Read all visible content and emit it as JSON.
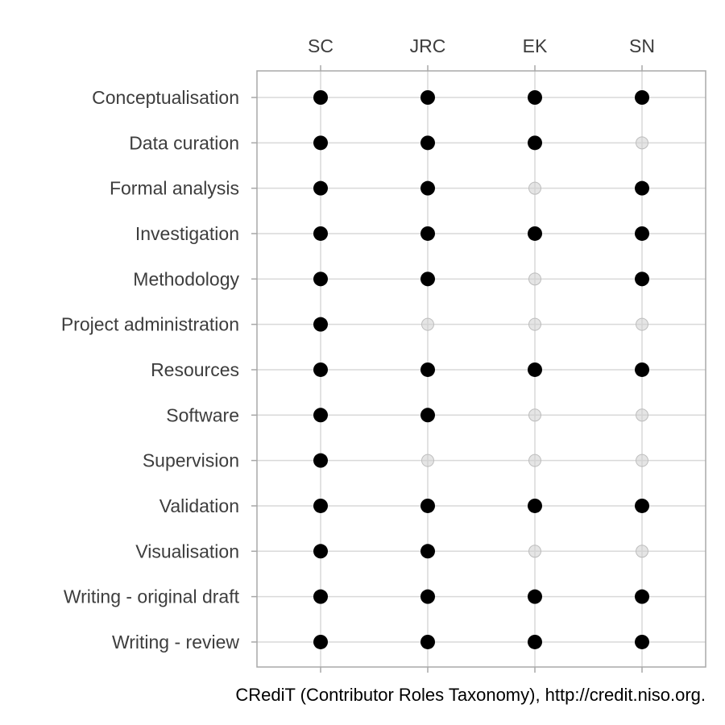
{
  "chart_data": {
    "type": "scatter",
    "title": "",
    "xlabel": "",
    "ylabel": "",
    "caption": "CRediT (Contributor Roles Taxonomy), http://credit.niso.org.",
    "x_axis_position": "top",
    "grid": true,
    "contributors": [
      "SC",
      "JRC",
      "EK",
      "SN"
    ],
    "roles": [
      "Conceptualisation",
      "Data curation",
      "Formal analysis",
      "Investigation",
      "Methodology",
      "Project administration",
      "Resources",
      "Software",
      "Supervision",
      "Validation",
      "Visualisation",
      "Writing - original draft",
      "Writing - review"
    ],
    "contributed": [
      [
        1,
        1,
        1,
        1
      ],
      [
        1,
        1,
        1,
        0
      ],
      [
        1,
        1,
        0,
        1
      ],
      [
        1,
        1,
        1,
        1
      ],
      [
        1,
        1,
        0,
        1
      ],
      [
        1,
        0,
        0,
        0
      ],
      [
        1,
        1,
        1,
        1
      ],
      [
        1,
        1,
        0,
        0
      ],
      [
        1,
        0,
        0,
        0
      ],
      [
        1,
        1,
        1,
        1
      ],
      [
        1,
        1,
        0,
        0
      ],
      [
        1,
        1,
        1,
        1
      ],
      [
        1,
        1,
        1,
        1
      ]
    ],
    "colors": {
      "contributed": "#000000",
      "not_contributed": "#cfcfcf",
      "grid": "#d9d9d9",
      "panel_border": "#a8a8a8"
    }
  }
}
